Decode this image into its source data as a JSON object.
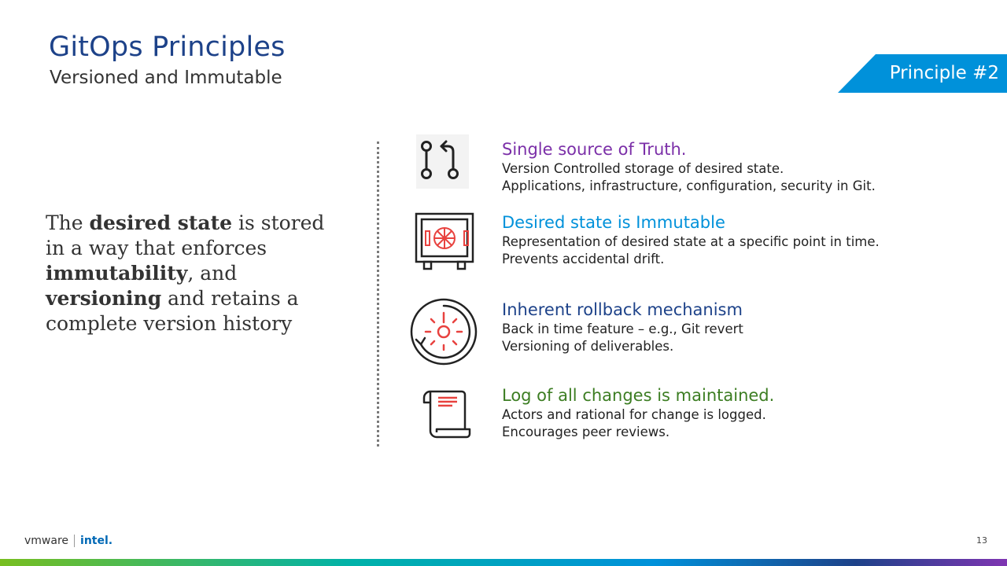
{
  "header": {
    "title": "GitOps Principles",
    "subtitle": "Versioned and Immutable",
    "badge": "Principle #2"
  },
  "lead": {
    "parts": [
      "The ",
      "desired state",
      " is stored in a way that enforces ",
      "immutability",
      ", and ",
      "versioning",
      " and retains a complete version history"
    ]
  },
  "items": [
    {
      "icon": "git-pull-request-icon",
      "title": "Single source of Truth.",
      "color": "#7b2fa8",
      "lines": [
        "Version Controlled storage of desired state.",
        "Applications, infrastructure, configuration, security in Git."
      ]
    },
    {
      "icon": "safe-icon",
      "title": "Desired state is Immutable",
      "color": "#0091da",
      "lines": [
        "Representation of desired state at a specific point in time.",
        "Prevents accidental drift."
      ]
    },
    {
      "icon": "rollback-dial-icon",
      "title": "Inherent rollback mechanism",
      "color": "#1d4289",
      "lines": [
        "Back in time feature – e.g., Git revert",
        "Versioning of deliverables."
      ]
    },
    {
      "icon": "scroll-log-icon",
      "title": "Log of all changes is maintained.",
      "color": "#3c7d22",
      "lines": [
        "Actors and rational for change is logged.",
        "Encourages peer reviews."
      ]
    }
  ],
  "footer": {
    "logo_vmware": "vmware",
    "logo_intel": "intel.",
    "page_number": "13"
  },
  "colors": {
    "title": "#1d4289",
    "badge": "#0091da",
    "icon_accent": "#e8423f"
  }
}
